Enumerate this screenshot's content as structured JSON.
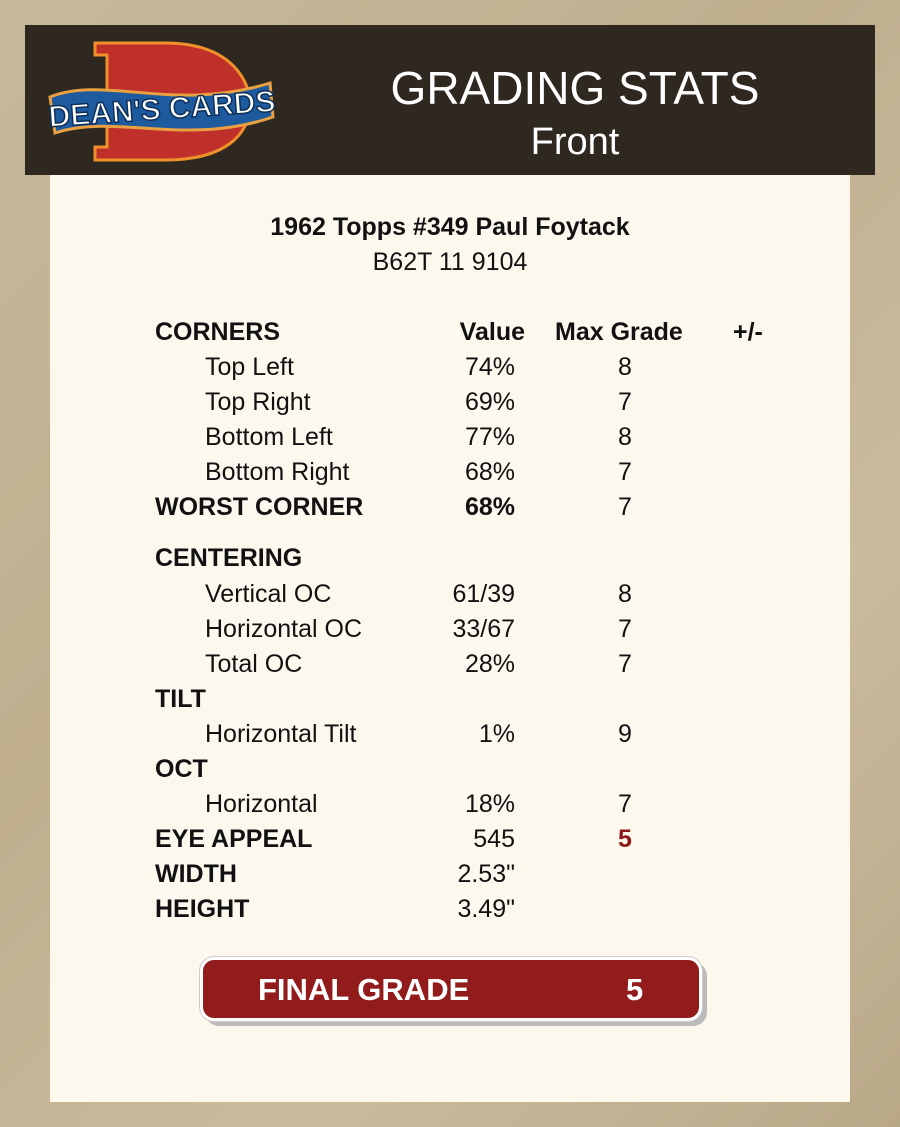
{
  "header": {
    "logo_text": "DEAN'S CARDS",
    "title": "GRADING STATS",
    "subtitle": "Front"
  },
  "card": {
    "title": "1962 Topps #349 Paul Foytack",
    "id": "B62T 11 9104"
  },
  "columns": {
    "value": "Value",
    "max_grade": "Max Grade",
    "plus_minus": "+/-"
  },
  "rows": [
    {
      "label": "CORNERS",
      "section": true,
      "value": "",
      "max": ""
    },
    {
      "label": "Top Left",
      "value": "74%",
      "max": "8"
    },
    {
      "label": "Top Right",
      "value": "69%",
      "max": "7"
    },
    {
      "label": "Bottom Left",
      "value": "77%",
      "max": "8"
    },
    {
      "label": "Bottom Right",
      "value": "68%",
      "max": "7"
    },
    {
      "label": "WORST CORNER",
      "section": true,
      "bold_value": true,
      "value": "68%",
      "max": "7"
    },
    {
      "label": "CENTERING",
      "section": true,
      "value": "",
      "max": ""
    },
    {
      "label": "Vertical OC",
      "value": "61/39",
      "max": "8"
    },
    {
      "label": "Horizontal OC",
      "value": "33/67",
      "max": "7"
    },
    {
      "label": "Total OC",
      "value": "28%",
      "max": "7"
    },
    {
      "label": "TILT",
      "section": true,
      "value": "",
      "max": ""
    },
    {
      "label": "Horizontal Tilt",
      "value": "1%",
      "max": "9"
    },
    {
      "label": "OCT",
      "section": true,
      "value": "",
      "max": ""
    },
    {
      "label": "Horizontal",
      "value": "18%",
      "max": "7"
    },
    {
      "label": "EYE APPEAL",
      "section": true,
      "value": "545",
      "max": "5",
      "max_highlight": true
    },
    {
      "label": "WIDTH",
      "section": true,
      "value": "2.53\"",
      "max": ""
    },
    {
      "label": "HEIGHT",
      "section": true,
      "value": "3.49\"",
      "max": ""
    }
  ],
  "final": {
    "label": "FINAL GRADE",
    "value": "5"
  },
  "colors": {
    "header_bg": "#2e2820",
    "card_bg": "#fcf8ee",
    "accent_red": "#921c1c",
    "highlight": "#8b1a1a"
  }
}
